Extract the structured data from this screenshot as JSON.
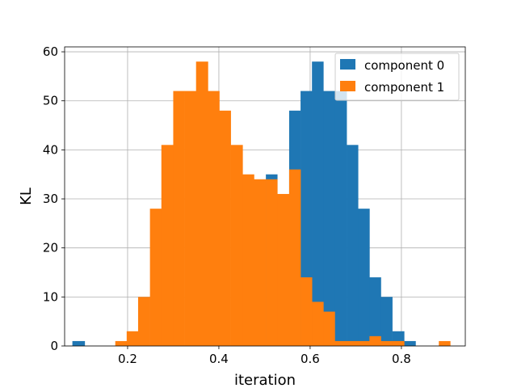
{
  "chart_data": {
    "type": "bar",
    "title": "",
    "xlabel": "iteration",
    "ylabel": "KL",
    "xlim": [
      0.062,
      0.94
    ],
    "ylim": [
      0,
      61
    ],
    "xticks": [
      0.2,
      0.4,
      0.6,
      0.8
    ],
    "xtick_labels": [
      "0.2",
      "0.4",
      "0.6",
      "0.8"
    ],
    "yticks": [
      0,
      10,
      20,
      30,
      40,
      50,
      60
    ],
    "ytick_labels": [
      "0",
      "10",
      "20",
      "30",
      "40",
      "50",
      "60"
    ],
    "grid": true,
    "legend": "top-right",
    "series": [
      {
        "name": "component 0",
        "color": "#1f77b4",
        "bins": [
          [
            0.079,
            0.106,
            1
          ],
          [
            0.503,
            0.528,
            35
          ],
          [
            0.528,
            0.554,
            26
          ],
          [
            0.554,
            0.579,
            48
          ],
          [
            0.579,
            0.604,
            52
          ],
          [
            0.604,
            0.629,
            58
          ],
          [
            0.629,
            0.654,
            52
          ],
          [
            0.654,
            0.68,
            52
          ],
          [
            0.68,
            0.705,
            41
          ],
          [
            0.705,
            0.73,
            28
          ],
          [
            0.73,
            0.755,
            14
          ],
          [
            0.755,
            0.78,
            10
          ],
          [
            0.78,
            0.806,
            3
          ],
          [
            0.806,
            0.831,
            1
          ]
        ]
      },
      {
        "name": "component 1",
        "color": "#ff7f0e",
        "bins": [
          [
            0.173,
            0.198,
            1
          ],
          [
            0.198,
            0.223,
            3
          ],
          [
            0.223,
            0.249,
            10
          ],
          [
            0.249,
            0.274,
            28
          ],
          [
            0.274,
            0.3,
            41
          ],
          [
            0.3,
            0.325,
            52
          ],
          [
            0.325,
            0.35,
            52
          ],
          [
            0.35,
            0.376,
            58
          ],
          [
            0.376,
            0.401,
            52
          ],
          [
            0.401,
            0.426,
            48
          ],
          [
            0.426,
            0.452,
            41
          ],
          [
            0.452,
            0.477,
            35
          ],
          [
            0.477,
            0.503,
            34
          ],
          [
            0.503,
            0.528,
            34
          ],
          [
            0.528,
            0.554,
            31
          ],
          [
            0.554,
            0.579,
            36
          ],
          [
            0.579,
            0.604,
            14
          ],
          [
            0.604,
            0.629,
            9
          ],
          [
            0.629,
            0.654,
            7
          ],
          [
            0.654,
            0.68,
            1
          ],
          [
            0.68,
            0.705,
            1
          ],
          [
            0.705,
            0.73,
            1
          ],
          [
            0.73,
            0.755,
            2
          ],
          [
            0.755,
            0.78,
            1
          ],
          [
            0.78,
            0.806,
            1
          ],
          [
            0.882,
            0.907,
            1
          ]
        ]
      }
    ]
  }
}
